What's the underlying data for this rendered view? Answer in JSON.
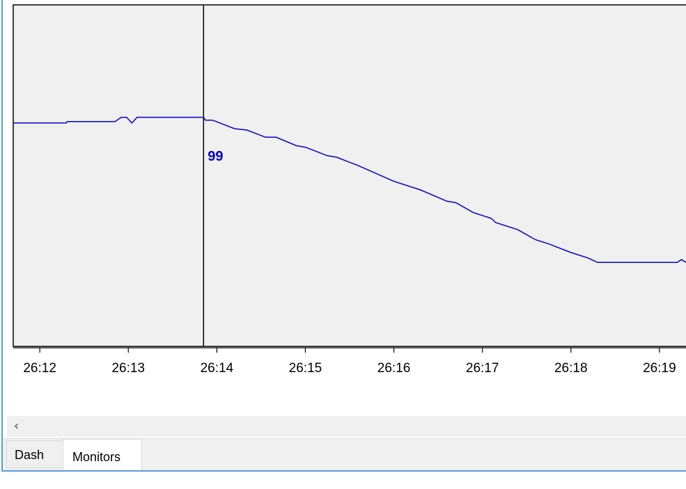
{
  "chart_data": {
    "type": "line",
    "title": "",
    "xlabel": "",
    "ylabel": "",
    "x_tick_labels": [
      "26:12",
      "26:13",
      "26:14",
      "26:15",
      "26:16",
      "26:17",
      "26:18",
      "26:19"
    ],
    "xlim": [
      "26:11.7",
      "26:19.3"
    ],
    "ylim": [
      83,
      107
    ],
    "grid": false,
    "line_color": "#0000cc",
    "cursor": {
      "x": "26:13.85",
      "label": "99"
    },
    "series": [
      {
        "values": [
          [
            "26:11.70",
            98.7
          ],
          [
            "26:12.30",
            98.7
          ],
          [
            "26:12.31",
            98.8
          ],
          [
            "26:12.85",
            98.8
          ],
          [
            "26:12.92",
            99.1
          ],
          [
            "26:12.98",
            99.1
          ],
          [
            "26:13.04",
            98.7
          ],
          [
            "26:13.10",
            99.1
          ],
          [
            "26:13.85",
            99.1
          ],
          [
            "26:13.87",
            98.9
          ],
          [
            "26:13.95",
            98.9
          ],
          [
            "26:14.20",
            98.3
          ],
          [
            "26:14.34",
            98.2
          ],
          [
            "26:14.55",
            97.7
          ],
          [
            "26:14.67",
            97.7
          ],
          [
            "26:14.90",
            97.1
          ],
          [
            "26:15.00",
            97.0
          ],
          [
            "26:15.25",
            96.4
          ],
          [
            "26:15.35",
            96.3
          ],
          [
            "26:15.60",
            95.7
          ],
          [
            "26:16.00",
            94.6
          ],
          [
            "26:16.30",
            94.0
          ],
          [
            "26:16.60",
            93.2
          ],
          [
            "26:16.70",
            93.1
          ],
          [
            "26:16.90",
            92.4
          ],
          [
            "26:17.10",
            92.0
          ],
          [
            "26:17.15",
            91.7
          ],
          [
            "26:17.40",
            91.2
          ],
          [
            "26:17.60",
            90.5
          ],
          [
            "26:17.75",
            90.2
          ],
          [
            "26:18.00",
            89.6
          ],
          [
            "26:18.20",
            89.2
          ],
          [
            "26:18.30",
            88.9
          ],
          [
            "26:19.20",
            88.9
          ],
          [
            "26:19.25",
            89.1
          ],
          [
            "26:19.30",
            88.9
          ]
        ]
      }
    ]
  },
  "scrollbar": {
    "left_arrow": "‹"
  },
  "tabs": [
    {
      "label": "Dash",
      "active": false
    },
    {
      "label": "Monitors",
      "active": true
    }
  ]
}
